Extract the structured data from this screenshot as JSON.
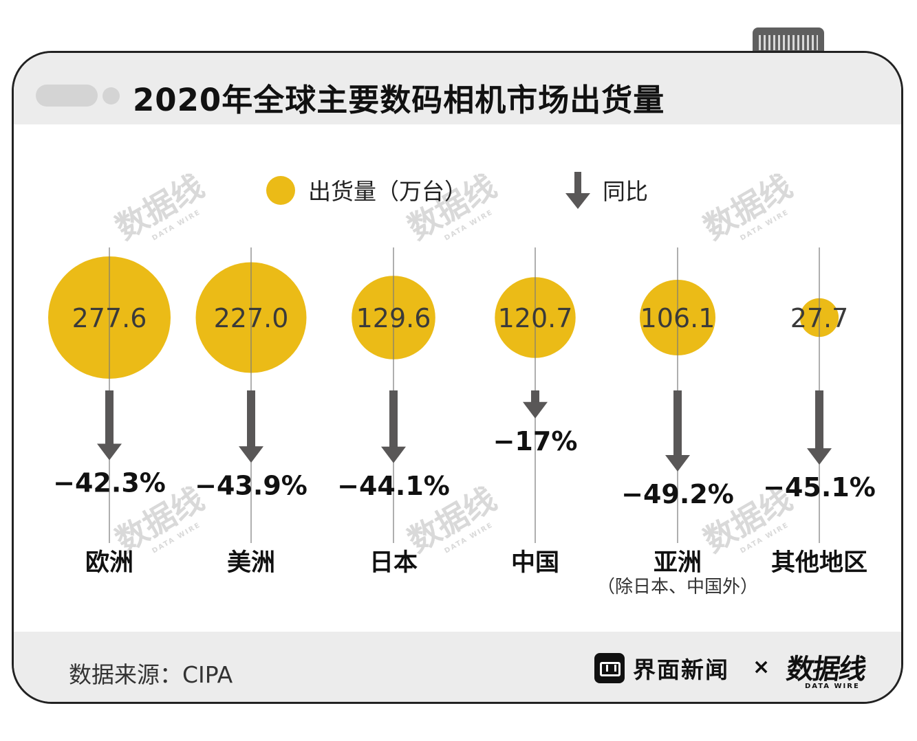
{
  "header": {
    "title": "2020年全球主要数码相机市场出货量"
  },
  "legend": {
    "bubble_label": "出货量（万台）",
    "arrow_label": "同比"
  },
  "chart_data": {
    "type": "bubble",
    "title": "2020年全球主要数码相机市场出货量",
    "legend": [
      "出货量（万台）",
      "同比"
    ],
    "categories": [
      "欧洲",
      "美洲",
      "日本",
      "中国",
      "亚洲",
      "其他地区"
    ],
    "category_notes": [
      "",
      "",
      "",
      "",
      "（除日本、中国外）",
      ""
    ],
    "series": [
      {
        "name": "出货量（万台）",
        "values": [
          277.6,
          227.0,
          129.6,
          120.7,
          106.1,
          27.7
        ],
        "labels": [
          "277.6",
          "227.0",
          "129.6",
          "120.7",
          "106.1",
          "27.7"
        ]
      },
      {
        "name": "同比",
        "values": [
          -42.3,
          -43.9,
          -44.1,
          -17,
          -49.2,
          -45.1
        ],
        "labels": [
          "−42.3%",
          "−43.9%",
          "−44.1%",
          "−17%",
          "−49.2%",
          "−45.1%"
        ]
      }
    ]
  },
  "footer": {
    "source": "数据来源：CIPA",
    "brand_primary": "界面新闻",
    "times_sign": "×",
    "brand_secondary": "数据线",
    "brand_secondary_en": "DATA WIRE"
  },
  "watermark": {
    "text": "数据线",
    "subtext": "DATA WIRE"
  },
  "colors": {
    "bubble": "#EBBB17",
    "arrow": "#595757",
    "axis_line": "#7a7a7a",
    "text": "#1a1a1a",
    "band": "#ececec",
    "border": "#222222",
    "watermark": "#d9d9d9"
  },
  "icons": {
    "legend_bubble": "yellow-circle-icon",
    "legend_arrow": "down-arrow-icon",
    "brand_logo": "jiemian-logo-icon"
  }
}
